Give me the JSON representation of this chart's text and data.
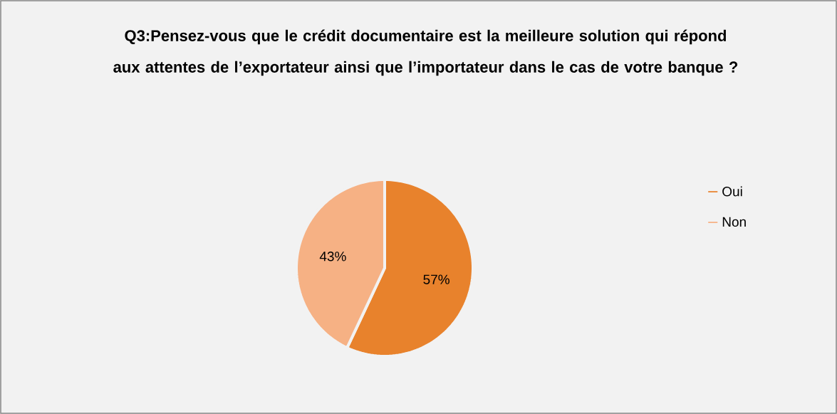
{
  "chart_data": {
    "type": "pie",
    "title": "Q3:Pensez-vous que le crédit documentaire est la meilleure solution qui répond aux attentes de l’exportateur ainsi que l’importateur dans le cas de votre banque ?",
    "categories": [
      "Oui",
      "Non"
    ],
    "values": [
      57,
      43
    ],
    "colors": [
      "#e8822c",
      "#f6b184"
    ],
    "value_labels": [
      "57%",
      "43%"
    ],
    "legend": "right"
  }
}
